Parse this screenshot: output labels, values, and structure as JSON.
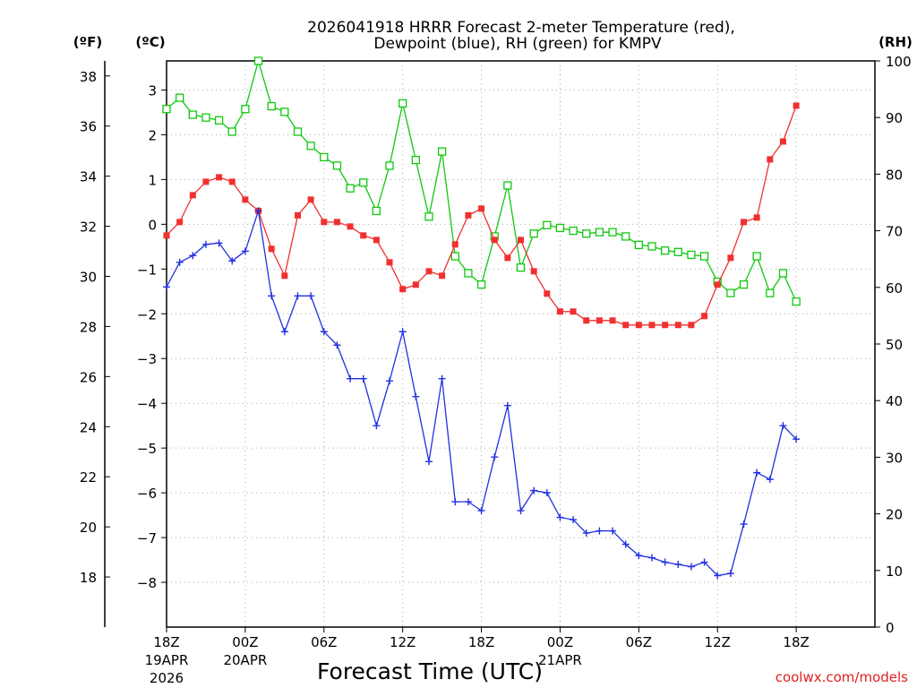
{
  "chart_data": {
    "type": "line",
    "title_line1": "2026041918 HRRR Forecast 2-meter Temperature (red),",
    "title_line2": "Dewpoint (blue), RH (green) for KMPV",
    "xlabel": "Forecast Time (UTC)",
    "credit": "coolwx.com/models",
    "units": {
      "fahrenheit": "(ºF)",
      "celsius": "(ºC)",
      "rh": "(RH)"
    },
    "x_forecast_hours": [
      0,
      54
    ],
    "x_ticks": [
      {
        "hour": 0,
        "label": "18Z",
        "date": "19APR",
        "year": "2026"
      },
      {
        "hour": 6,
        "label": "00Z",
        "date": "20APR",
        "year": ""
      },
      {
        "hour": 12,
        "label": "06Z",
        "date": "",
        "year": ""
      },
      {
        "hour": 18,
        "label": "12Z",
        "date": "",
        "year": ""
      },
      {
        "hour": 24,
        "label": "18Z",
        "date": "",
        "year": ""
      },
      {
        "hour": 30,
        "label": "00Z",
        "date": "21APR",
        "year": ""
      },
      {
        "hour": 36,
        "label": "06Z",
        "date": "",
        "year": ""
      },
      {
        "hour": 42,
        "label": "12Z",
        "date": "",
        "year": ""
      },
      {
        "hour": 48,
        "label": "18Z",
        "date": "",
        "year": ""
      }
    ],
    "celsius_axis": {
      "range": [
        -9,
        3.65
      ],
      "ticks": [
        3,
        2,
        1,
        0,
        -1,
        -2,
        -3,
        -4,
        -5,
        -6,
        -7,
        -8
      ]
    },
    "fahrenheit_axis": {
      "range": [
        16,
        38.6
      ],
      "ticks": [
        38,
        36,
        34,
        32,
        30,
        28,
        26,
        24,
        22,
        20,
        18
      ]
    },
    "rh_axis": {
      "range": [
        0,
        100
      ],
      "ticks": [
        100,
        90,
        80,
        70,
        60,
        50,
        40,
        30,
        20,
        10,
        0
      ]
    },
    "series": [
      {
        "name": "2-meter Temperature",
        "units": "C",
        "color": "#f03030",
        "marker": "filled-square",
        "values": [
          -0.25,
          0.05,
          0.65,
          0.95,
          1.05,
          0.95,
          0.55,
          0.3,
          -0.55,
          -1.15,
          0.2,
          0.55,
          0.05,
          0.05,
          -0.05,
          -0.25,
          -0.35,
          -0.85,
          -1.45,
          -1.35,
          -1.05,
          -1.15,
          -0.45,
          0.2,
          0.35,
          -0.35,
          -0.75,
          -0.35,
          -1.05,
          -1.55,
          -1.95,
          -1.95,
          -2.15,
          -2.15,
          -2.15,
          -2.25,
          -2.25,
          -2.25,
          -2.25,
          -2.25,
          -2.25,
          -2.05,
          -1.35,
          -0.75,
          0.05,
          0.15,
          1.45,
          1.85,
          2.65
        ]
      },
      {
        "name": "Dewpoint",
        "units": "C",
        "color": "#2030e0",
        "marker": "plus",
        "values": [
          -1.4,
          -0.85,
          -0.7,
          -0.45,
          -0.42,
          -0.82,
          -0.6,
          0.3,
          -1.6,
          -2.4,
          -1.6,
          -1.6,
          -2.4,
          -2.7,
          -3.45,
          -3.45,
          -4.5,
          -3.5,
          -2.4,
          -3.85,
          -5.3,
          -3.45,
          -6.2,
          -6.2,
          -6.4,
          -5.2,
          -4.05,
          -6.4,
          -5.95,
          -6.0,
          -6.55,
          -6.6,
          -6.9,
          -6.85,
          -6.85,
          -7.15,
          -7.4,
          -7.45,
          -7.55,
          -7.6,
          -7.65,
          -7.55,
          -7.85,
          -7.8,
          -6.7,
          -5.55,
          -5.7,
          -4.5,
          -4.8
        ]
      },
      {
        "name": "RH",
        "units": "%",
        "color": "#10c810",
        "marker": "open-square",
        "values": [
          91.5,
          93.5,
          90.5,
          90,
          89.5,
          87.5,
          91.5,
          100,
          92,
          91,
          87.5,
          85,
          83,
          81.5,
          77.5,
          78.5,
          73.5,
          81.5,
          92.5,
          82.5,
          72.5,
          84,
          65.5,
          62.5,
          60.5,
          69,
          78,
          63.5,
          69.5,
          71,
          70.5,
          70,
          69.5,
          69.75,
          69.75,
          69,
          67.5,
          67.25,
          66.5,
          66.25,
          65.75,
          65.5,
          61,
          59,
          60.5,
          65.5,
          59,
          62.5,
          57.5
        ]
      }
    ]
  }
}
